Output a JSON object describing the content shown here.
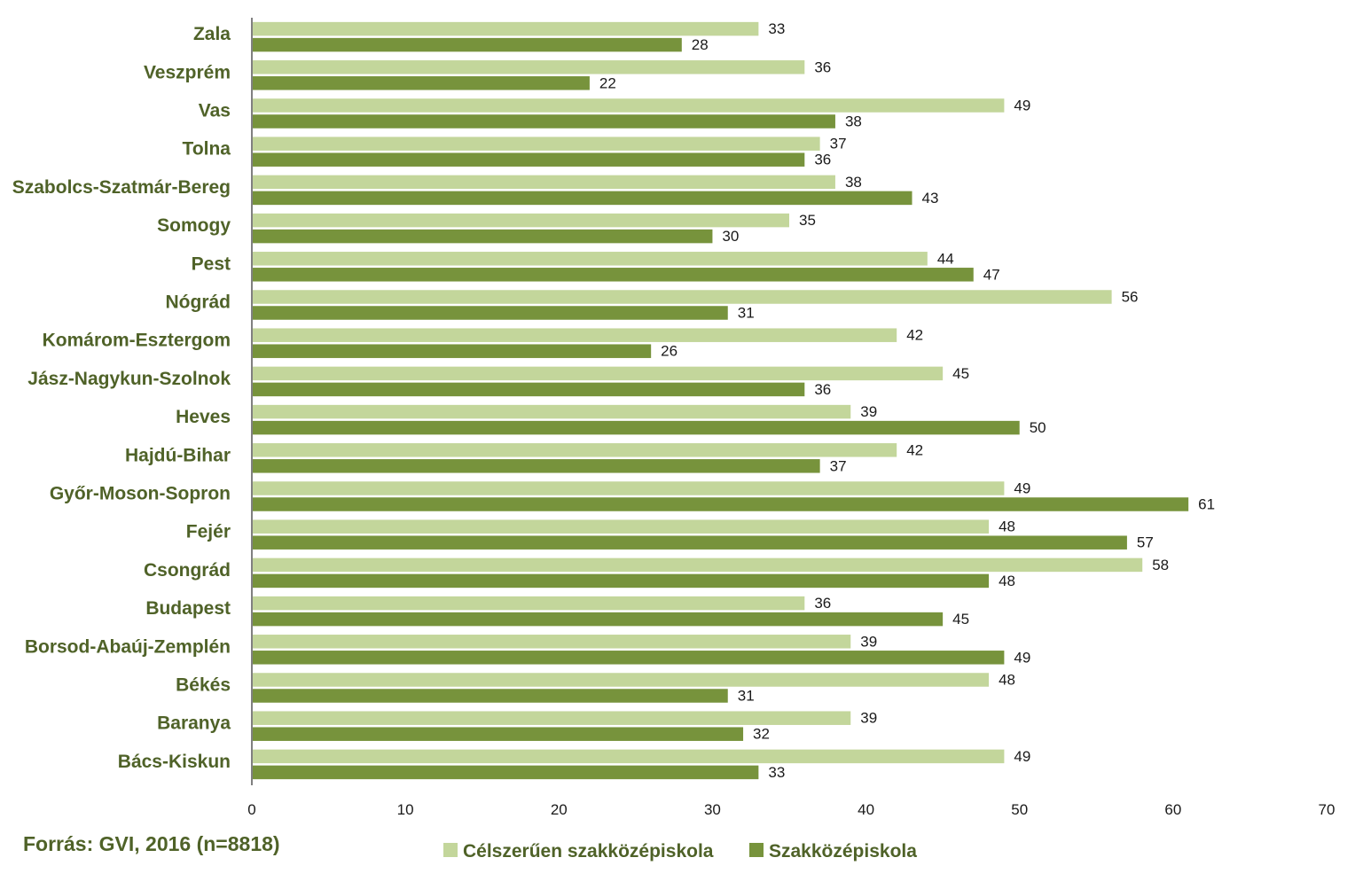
{
  "source": "Forrás: GVI, 2016 (n=8818)",
  "colors": {
    "series_light": "#c3d69b",
    "series_dark": "#77933c",
    "label_text": "#4f6228",
    "axis": "#000000"
  },
  "chart_data": {
    "type": "bar",
    "orientation": "horizontal",
    "categories": [
      "Zala",
      "Veszprém",
      "Vas",
      "Tolna",
      "Szabolcs-Szatmár-Bereg",
      "Somogy",
      "Pest",
      "Nógrád",
      "Komárom-Esztergom",
      "Jász-Nagykun-Szolnok",
      "Heves",
      "Hajdú-Bihar",
      "Győr-Moson-Sopron",
      "Fejér",
      "Csongrád",
      "Budapest",
      "Borsod-Abaúj-Zemplén",
      "Békés",
      "Baranya",
      "Bács-Kiskun"
    ],
    "series": [
      {
        "name": "Célszerűen szakközépiskola",
        "values": [
          33,
          36,
          49,
          37,
          38,
          35,
          44,
          56,
          42,
          45,
          39,
          42,
          49,
          48,
          58,
          36,
          39,
          48,
          39,
          49
        ],
        "color": "#c3d69b"
      },
      {
        "name": "Szakközépiskola",
        "values": [
          28,
          22,
          38,
          36,
          43,
          30,
          47,
          31,
          26,
          36,
          50,
          37,
          61,
          57,
          48,
          45,
          49,
          31,
          32,
          33
        ],
        "color": "#77933c"
      }
    ],
    "xlim": [
      0,
      70
    ],
    "xticks": [
      0,
      10,
      20,
      30,
      40,
      50,
      60,
      70
    ],
    "grid": false,
    "data_labels": true,
    "legend_position": "bottom"
  }
}
